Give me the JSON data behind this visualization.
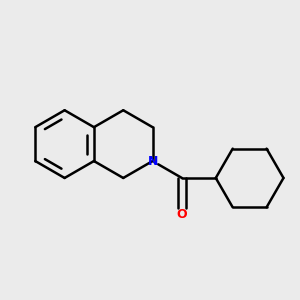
{
  "background_color": "#ebebeb",
  "bond_color": "#000000",
  "N_color": "#0000ff",
  "O_color": "#ff0000",
  "linewidth": 1.8,
  "figsize": [
    3.0,
    3.0
  ],
  "dpi": 100,
  "bx": 0.21,
  "by": 0.52,
  "br": 0.115
}
